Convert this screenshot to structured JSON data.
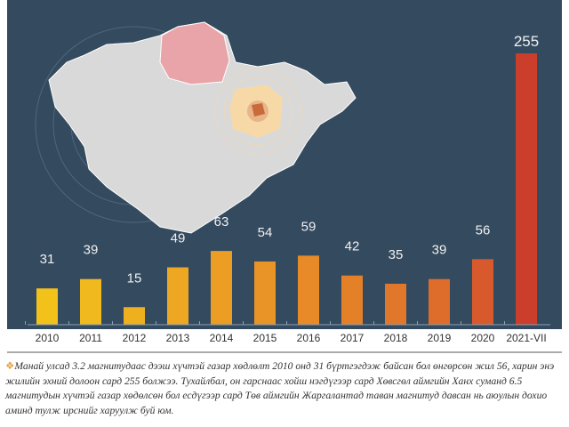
{
  "chart_data": {
    "type": "bar",
    "title": "",
    "xlabel": "",
    "ylabel": "",
    "categories": [
      "2010",
      "2011",
      "2012",
      "2013",
      "2014",
      "2015",
      "2016",
      "2017",
      "2018",
      "2019",
      "2020",
      "2021-VII"
    ],
    "values": [
      31,
      39,
      15,
      49,
      63,
      54,
      59,
      42,
      35,
      39,
      56,
      255
    ],
    "colors": [
      "#f2c21b",
      "#f0b91e",
      "#efb020",
      "#eda722",
      "#eb9d24",
      "#e99426",
      "#e78a27",
      "#e48128",
      "#e1772a",
      "#de6d2b",
      "#d85a2c",
      "#cc3e2c"
    ],
    "ylim": [
      0,
      255
    ],
    "grid": false
  },
  "map": {
    "highlight_red": "#e8a4a8",
    "highlight_orange": "#f7d9a8",
    "land": "#d9d9d9"
  },
  "caption": {
    "bullet": "❖",
    "text": "Манай улсад 3.2 магнитудаас дээш хүчтэй газар хөдлөлт 2010 онд 31 бүртгэгдэж байсан бол өнгөрсөн жил 56, харин энэ жилийн эхний долоон сард 255 болжээ. Тухайлбал, он гарснаас хойш нэгдүгээр сард  Хөвсгөл аймгийн Ханх суманд 6.5 магнитудын хүчтэй газар хөдөлсөн бол есдүгээр сард Төв аймгийн Жаргалантад таван магнитуд давсан нь аюулын дохио аминд тулж ирснийг харуулж буй юм."
  }
}
